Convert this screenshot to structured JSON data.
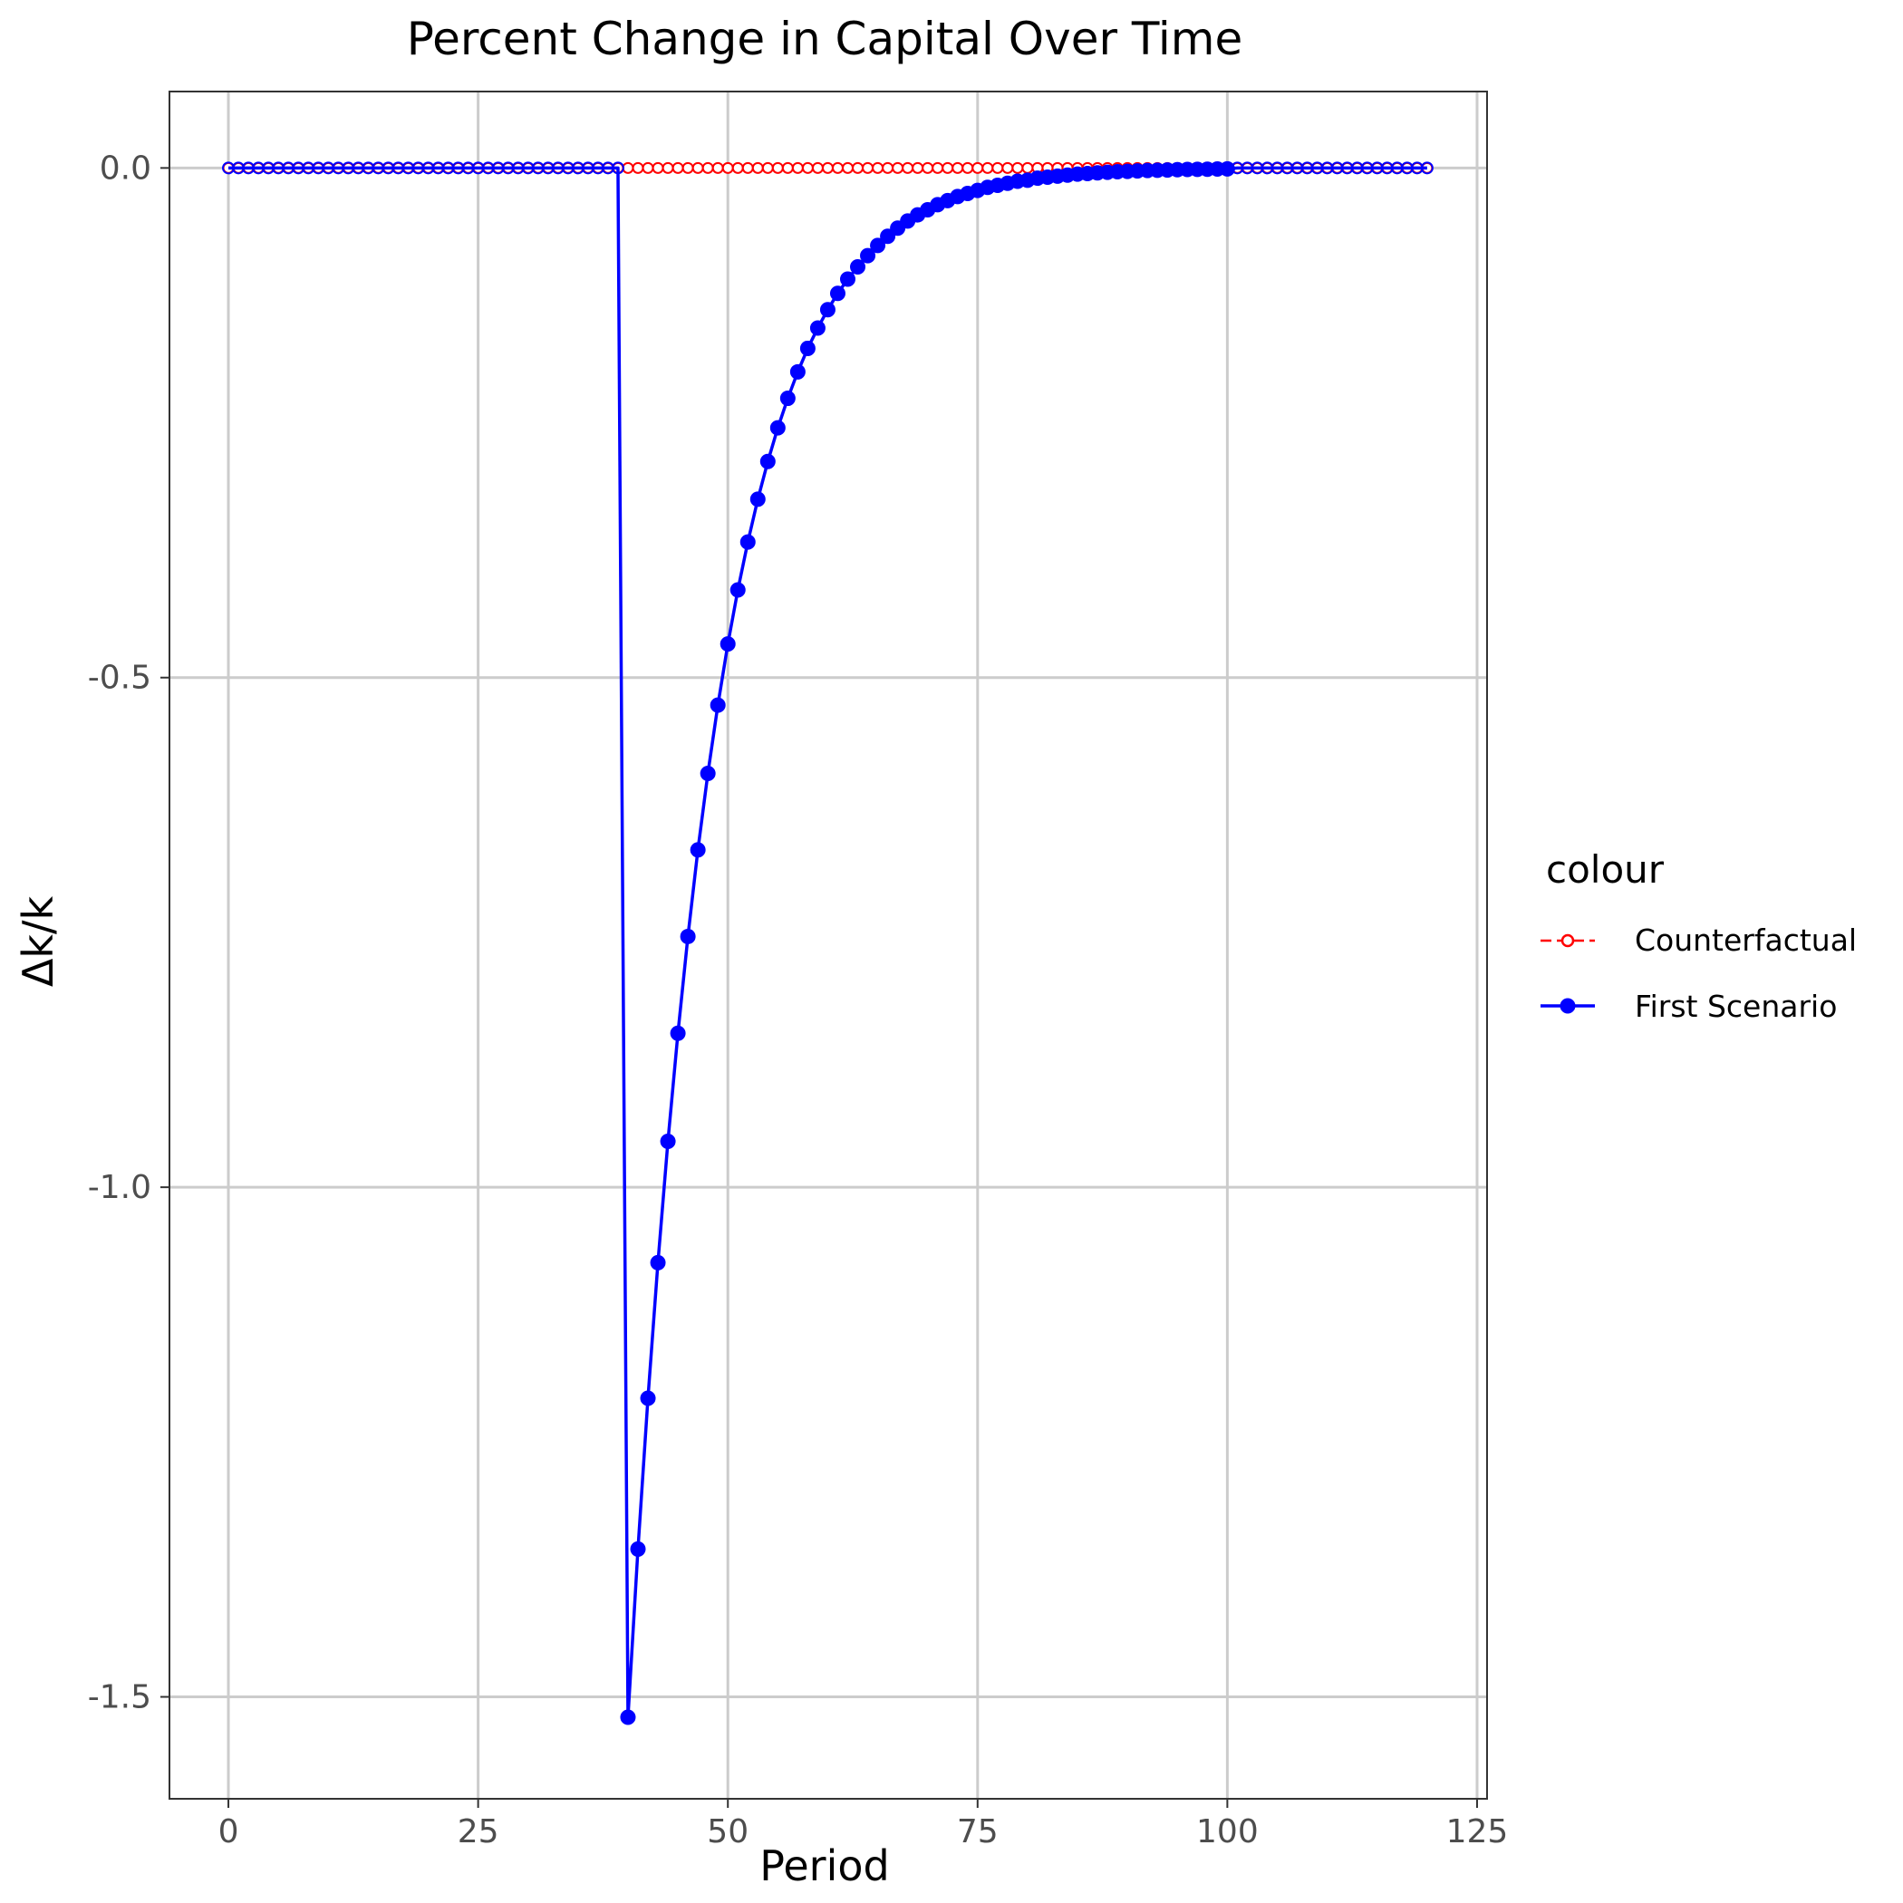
{
  "chart_data": {
    "type": "line",
    "title": "Percent Change in Capital Over Time",
    "xlabel": "Period",
    "ylabel": "Δk/k",
    "xlim": [
      -5.9,
      126
    ],
    "ylim": [
      -1.6,
      0.075
    ],
    "x_ticks": [
      0,
      25,
      50,
      75,
      100,
      125
    ],
    "x_tick_labels": [
      "0",
      "25",
      "50",
      "75",
      "100",
      "125"
    ],
    "y_ticks": [
      0.0,
      -0.5,
      -1.0,
      -1.5
    ],
    "y_tick_labels": [
      "0.0",
      "-0.5",
      "-1.0",
      "-1.5"
    ],
    "grid": true,
    "legend": {
      "title": "colour",
      "position": "right",
      "entries": [
        "Counterfactual",
        "First Scenario"
      ]
    },
    "x_start": 0,
    "x_end": 120,
    "series": [
      {
        "name": "Counterfactual",
        "color": "#ff0000",
        "linestyle": "dashed",
        "marker": "open-circle",
        "values": "all zero (0.0) for every period 0 to 120"
      },
      {
        "name": "First Scenario",
        "color": "#0000ff",
        "linestyle": "solid",
        "marker": "filled-circle",
        "pre_shock_value": 0.0,
        "points": [
          [
            40,
            -1.52
          ],
          [
            41,
            -1.355
          ],
          [
            42,
            -1.207
          ],
          [
            43,
            -1.074
          ],
          [
            44,
            -0.955
          ],
          [
            45,
            -0.849
          ],
          [
            46,
            -0.754
          ],
          [
            47,
            -0.669
          ],
          [
            48,
            -0.594
          ],
          [
            49,
            -0.527
          ],
          [
            50,
            -0.467
          ],
          [
            51,
            -0.414
          ],
          [
            52,
            -0.367
          ],
          [
            53,
            -0.325
          ],
          [
            54,
            -0.288
          ],
          [
            55,
            -0.255
          ],
          [
            56,
            -0.226
          ],
          [
            57,
            -0.2
          ],
          [
            58,
            -0.177
          ],
          [
            59,
            -0.157
          ],
          [
            60,
            -0.139
          ],
          [
            61,
            -0.123
          ],
          [
            62,
            -0.109
          ],
          [
            63,
            -0.097
          ],
          [
            64,
            -0.086
          ],
          [
            65,
            -0.076
          ],
          [
            66,
            -0.067
          ],
          [
            67,
            -0.059
          ],
          [
            68,
            -0.052
          ],
          [
            69,
            -0.046
          ],
          [
            70,
            -0.041
          ],
          [
            71,
            -0.036
          ],
          [
            72,
            -0.032
          ],
          [
            73,
            -0.028
          ],
          [
            74,
            -0.025
          ],
          [
            75,
            -0.022
          ],
          [
            76,
            -0.019
          ],
          [
            77,
            -0.017
          ],
          [
            78,
            -0.015
          ],
          [
            79,
            -0.013
          ],
          [
            80,
            -0.012
          ],
          [
            81,
            -0.01
          ],
          [
            82,
            -0.009
          ],
          [
            83,
            -0.008
          ],
          [
            84,
            -0.007
          ],
          [
            85,
            -0.006
          ],
          [
            86,
            -0.0055
          ],
          [
            87,
            -0.0048
          ],
          [
            88,
            -0.0042
          ],
          [
            89,
            -0.0037
          ],
          [
            90,
            -0.0033
          ],
          [
            91,
            -0.0029
          ],
          [
            92,
            -0.0025
          ],
          [
            93,
            -0.0022
          ],
          [
            94,
            -0.002
          ],
          [
            95,
            -0.0017
          ],
          [
            96,
            -0.0015
          ],
          [
            97,
            -0.0013
          ],
          [
            98,
            -0.0012
          ],
          [
            99,
            -0.001
          ],
          [
            100,
            -0.0009
          ]
        ]
      }
    ]
  }
}
